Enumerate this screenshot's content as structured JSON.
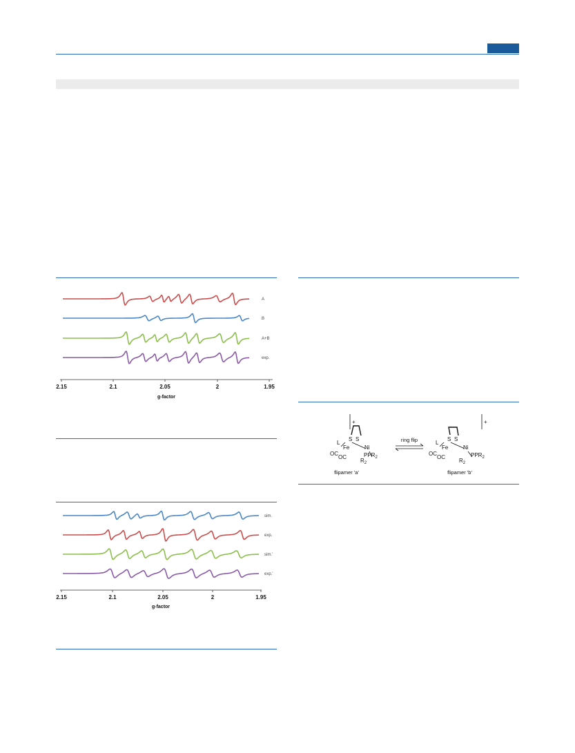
{
  "page": {
    "colors": {
      "rule": "#2a6db0",
      "tab": "#1a5a9a",
      "band": "#ebebeb"
    }
  },
  "chart_data": [
    {
      "type": "line",
      "xlabel": "g-factor",
      "ylabel": "",
      "xlim": [
        2.15,
        1.95
      ],
      "xticks": [
        "2.15",
        "2.1",
        "2.05",
        "2",
        "1.95"
      ],
      "grid": false,
      "legend": "inline right",
      "series": [
        {
          "name": "A",
          "color": "#cc4b4b"
        },
        {
          "name": "B",
          "color": "#4a86c5"
        },
        {
          "name": "A+B",
          "color": "#8bbf4a"
        },
        {
          "name": "exp.",
          "color": "#8a5aa8"
        }
      ]
    },
    {
      "type": "line",
      "xlabel": "g-factor",
      "ylabel": "",
      "xlim": [
        2.15,
        1.95
      ],
      "xticks": [
        "2.15",
        "2.1",
        "2.05",
        "2",
        "1.95"
      ],
      "grid": false,
      "legend": "inline right",
      "series": [
        {
          "name": "sim.",
          "color": "#4a86c5"
        },
        {
          "name": "exp.",
          "color": "#cc4b4b"
        },
        {
          "name": "sim.'",
          "color": "#8bbf4a"
        },
        {
          "name": "exp.'",
          "color": "#8a5aa8"
        }
      ]
    }
  ],
  "scheme": {
    "arrow_label": "ring flip",
    "left_caption": "flipamer 'a'",
    "right_caption": "flipamer 'b'",
    "charge": "+",
    "atoms": {
      "L": "L",
      "Fe": "Fe",
      "S": "S",
      "Ni": "Ni",
      "OC": "OC",
      "PR2": "PR",
      "R2P": "R",
      "sub2": "2",
      "P": "P"
    }
  }
}
